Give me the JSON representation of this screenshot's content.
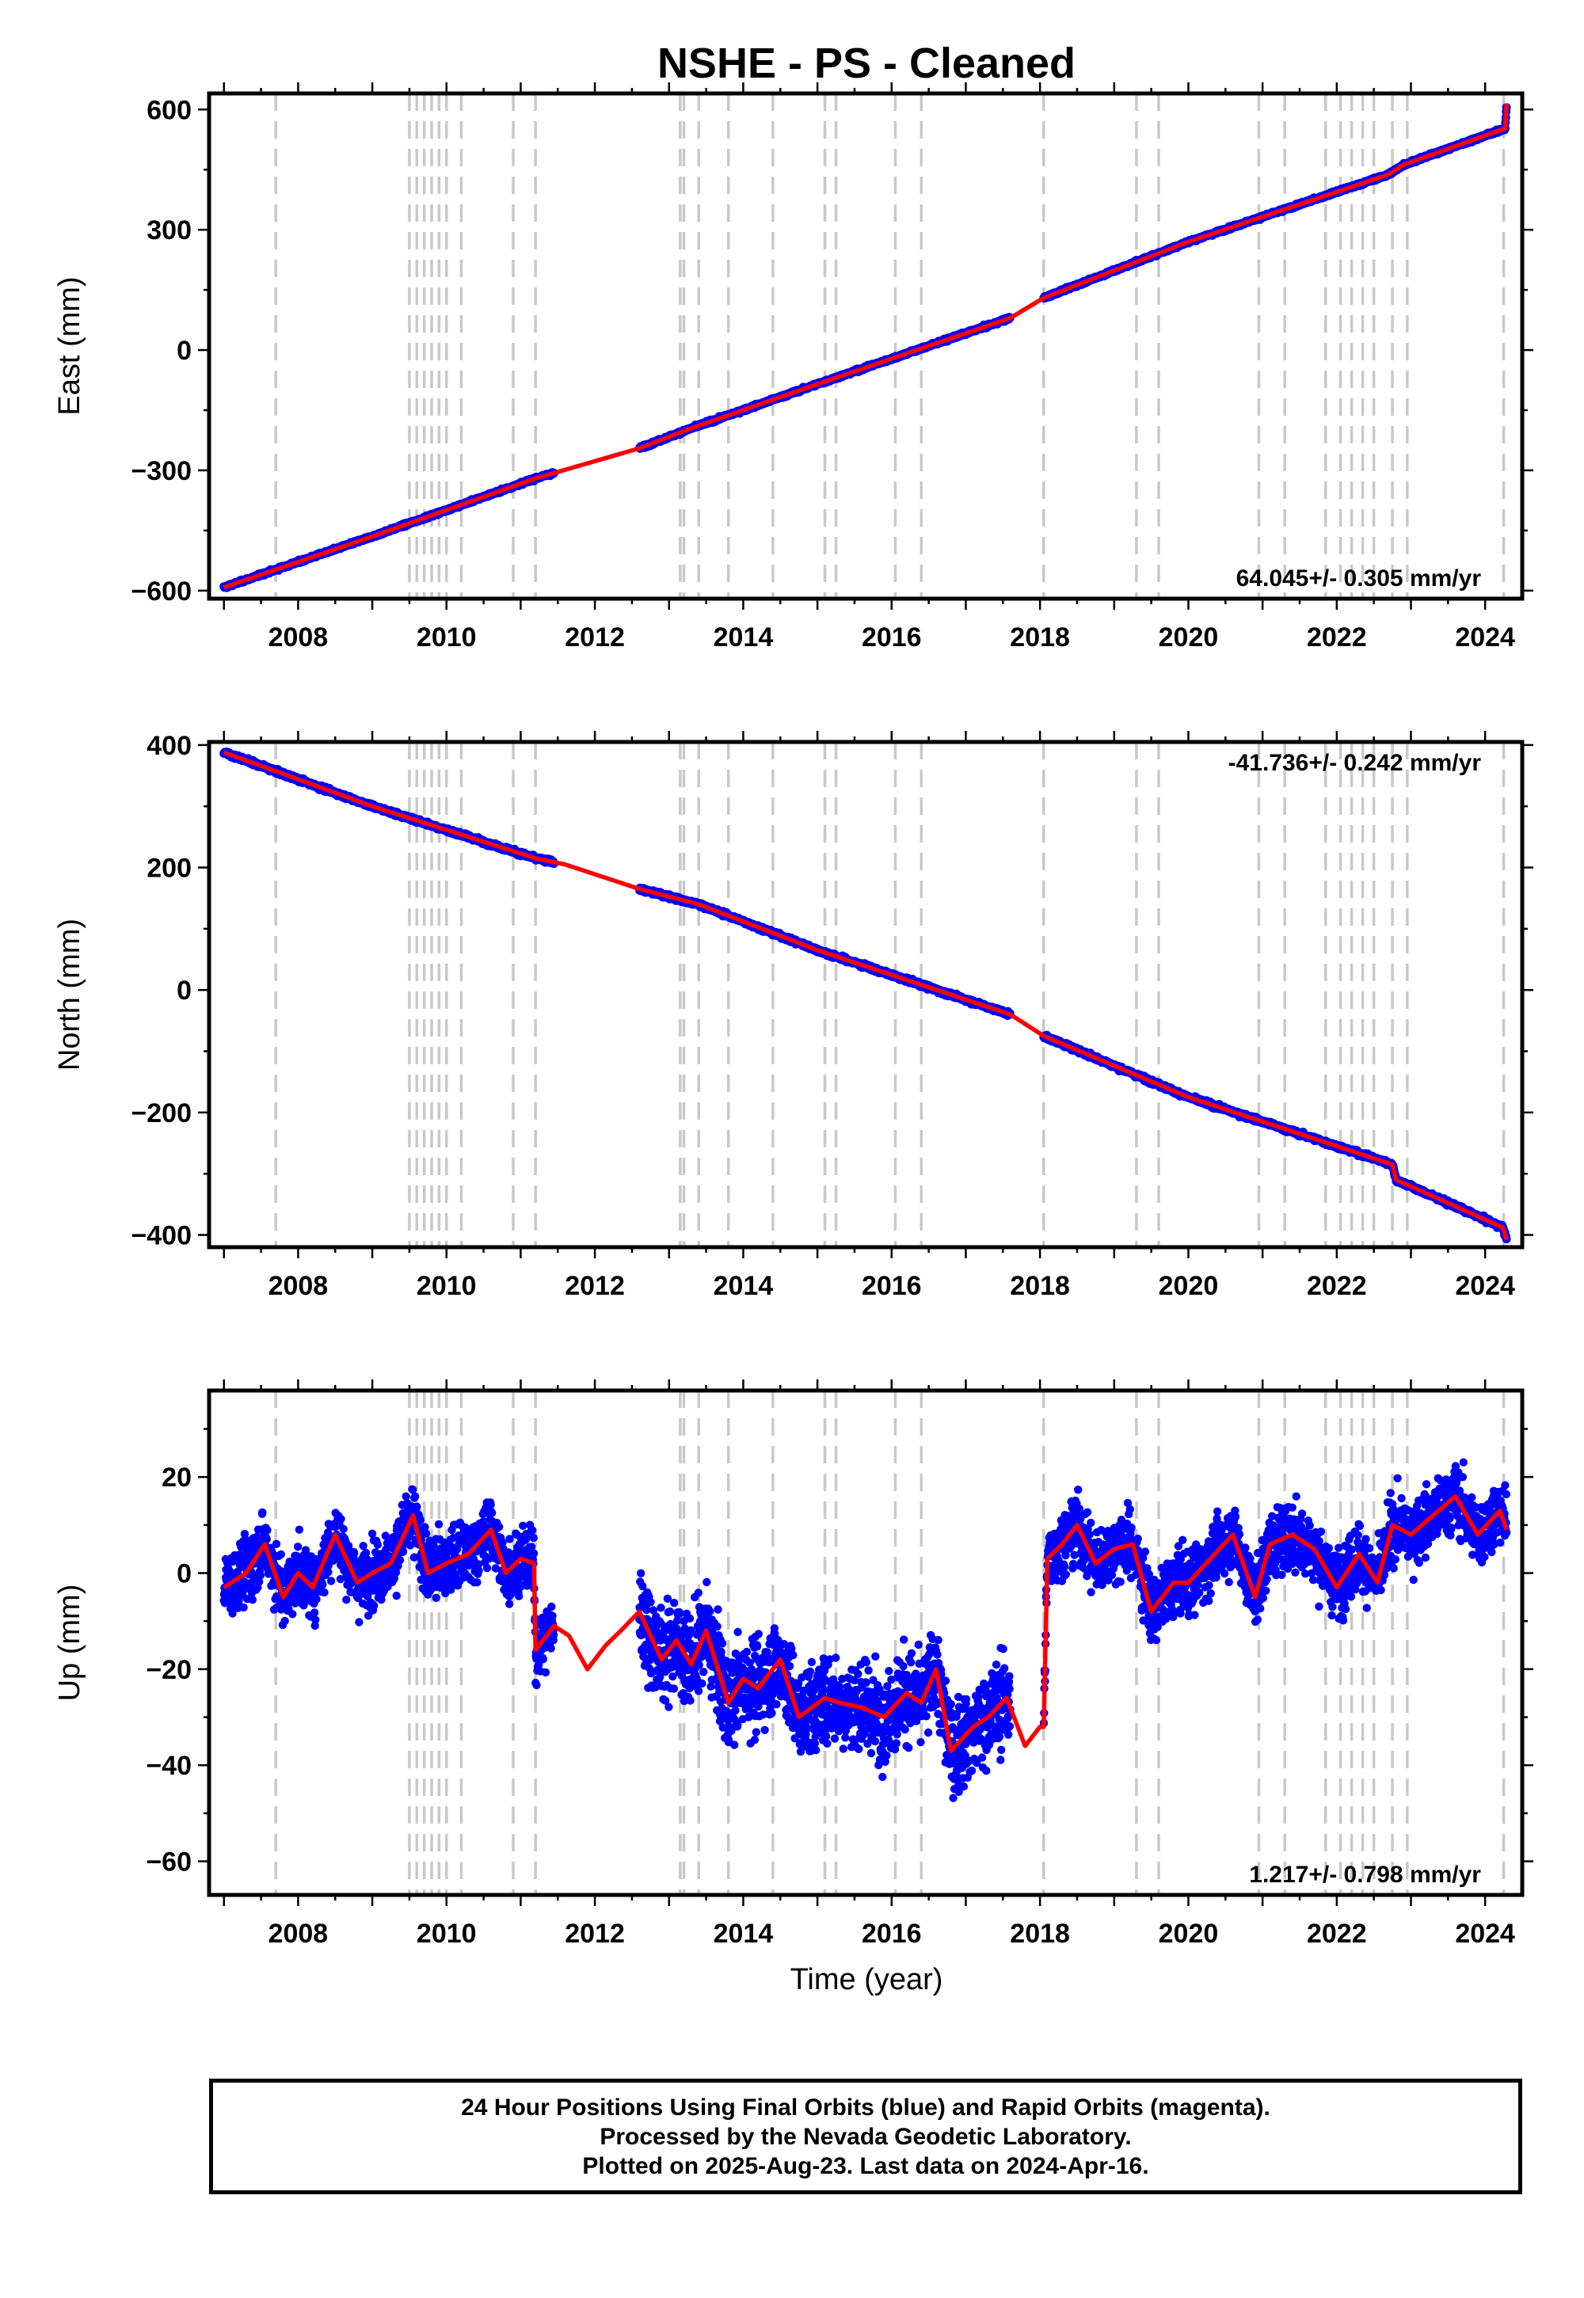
{
  "chart_data": {
    "type": "scatter",
    "title": "NSHE  - PS - Cleaned",
    "xlabel": "Time (year)",
    "xlim": [
      2006.8,
      2024.5
    ],
    "x_ticks": [
      2008,
      2010,
      2012,
      2014,
      2016,
      2018,
      2020,
      2022,
      2024
    ],
    "event_lines": [
      2007.7,
      2009.5,
      2009.6,
      2009.7,
      2009.8,
      2009.9,
      2010.0,
      2010.2,
      2010.9,
      2011.2,
      2013.15,
      2013.2,
      2013.4,
      2013.8,
      2014.4,
      2015.1,
      2015.25,
      2016.05,
      2016.4,
      2018.05,
      2019.3,
      2019.6,
      2020.95,
      2021.3,
      2021.85,
      2022.05,
      2022.2,
      2022.35,
      2022.5,
      2022.75,
      2022.95,
      2024.25
    ],
    "data_gaps": [
      [
        2011.45,
        2012.6
      ],
      [
        2017.6,
        2018.05
      ]
    ],
    "panels": [
      {
        "component": "east",
        "ylabel": "East (mm)",
        "ylim": [
          -620,
          640
        ],
        "y_ticks": [
          -600,
          -300,
          0,
          300,
          600
        ],
        "rate_label": "64.045+/- 0.305 mm/yr",
        "rate_position": "bottom-right",
        "series": [
          {
            "name": "24 Hour Positions",
            "color": "#0000ff",
            "x_start": 2007.0,
            "x_end": 2024.29,
            "start_value": -593,
            "rate_mm_per_yr": 64.045,
            "scatter_mm": 3
          },
          {
            "name": "model",
            "color": "#ff0000",
            "x": [
              2007.0,
              2009.0,
              2011.2,
              2012.6,
              2013.3,
              2015.0,
              2017.6,
              2018.05,
              2020.0,
              2022.7,
              2022.9,
              2024.27,
              2024.29
            ],
            "values": [
              -592,
              -465,
              -320,
              -245,
              -195,
              -85,
              80,
              130,
              270,
              438,
              462,
              553,
              615
            ]
          }
        ]
      },
      {
        "component": "north",
        "ylabel": "North (mm)",
        "ylim": [
          -420,
          405
        ],
        "y_ticks": [
          -400,
          -200,
          0,
          200,
          400
        ],
        "rate_label": "-41.736+/- 0.242 mm/yr",
        "rate_position": "top-right",
        "series": [
          {
            "name": "24 Hour Positions",
            "color": "#0000ff",
            "x_start": 2007.0,
            "x_end": 2024.29,
            "start_value": 388,
            "rate_mm_per_yr": -41.736,
            "scatter_mm": 3
          },
          {
            "name": "model",
            "color": "#ff0000",
            "x": [
              2007.0,
              2009.0,
              2011.2,
              2011.6,
              2012.6,
              2013.4,
              2015.0,
              2017.6,
              2018.05,
              2020.0,
              2022.75,
              2022.8,
              2024.24,
              2024.29
            ],
            "values": [
              388,
              300,
              215,
              205,
              165,
              140,
              65,
              -40,
              -75,
              -175,
              -285,
              -310,
              -388,
              -408
            ]
          }
        ]
      },
      {
        "component": "up",
        "ylabel": "Up (mm)",
        "ylim": [
          -67,
          38
        ],
        "y_ticks": [
          -60,
          -40,
          -20,
          0,
          20
        ],
        "rate_label": "1.217+/- 0.798 mm/yr",
        "rate_position": "bottom-right",
        "series": [
          {
            "name": "24 Hour Positions",
            "color": "#0000ff",
            "x_start": 2007.0,
            "x_end": 2024.29,
            "scatter_mm": 5
          },
          {
            "name": "model",
            "color": "#ff0000",
            "x": [
              2007.0,
              2007.3,
              2007.55,
              2007.8,
              2008.0,
              2008.2,
              2008.5,
              2008.8,
              2009.0,
              2009.25,
              2009.55,
              2009.75,
              2010.0,
              2010.3,
              2010.6,
              2010.8,
              2011.0,
              2011.18,
              2011.2,
              2011.45,
              2011.65,
              2011.9,
              2012.15,
              2012.35,
              2012.6,
              2012.9,
              2013.1,
              2013.3,
              2013.5,
              2013.8,
              2014.0,
              2014.2,
              2014.5,
              2014.75,
              2015.1,
              2015.3,
              2015.6,
              2015.9,
              2016.2,
              2016.4,
              2016.6,
              2016.8,
              2017.1,
              2017.3,
              2017.55,
              2017.8,
              2018.0,
              2018.05,
              2018.1,
              2018.3,
              2018.5,
              2018.75,
              2019.0,
              2019.25,
              2019.5,
              2019.8,
              2020.0,
              2020.3,
              2020.6,
              2020.9,
              2021.1,
              2021.4,
              2021.7,
              2022.0,
              2022.3,
              2022.55,
              2022.75,
              2023.0,
              2023.3,
              2023.6,
              2023.9,
              2024.2,
              2024.29
            ],
            "values": [
              -3,
              0,
              6,
              -5,
              0,
              -3,
              8,
              -2,
              0,
              2,
              12,
              0,
              2,
              4,
              9,
              0,
              3,
              2,
              -16,
              -11,
              -13,
              -20,
              -15,
              -12,
              -8,
              -18,
              -14,
              -19,
              -12,
              -27,
              -22,
              -24,
              -18,
              -30,
              -26,
              -27,
              -28,
              -30,
              -25,
              -27,
              -20,
              -37,
              -32,
              -30,
              -26,
              -36,
              -32,
              -32,
              3,
              6,
              10,
              2,
              5,
              6,
              -8,
              -2,
              -2,
              3,
              8,
              -5,
              6,
              8,
              5,
              -3,
              4,
              -2,
              10,
              8,
              12,
              16,
              8,
              13,
              9
            ]
          }
        ]
      }
    ]
  },
  "footer": {
    "line1": "24 Hour Positions Using Final Orbits (blue) and Rapid Orbits (magenta).",
    "line2": "Processed by the Nevada Geodetic Laboratory.",
    "line3": "Plotted on 2025-Aug-23. Last data on 2024-Apr-16."
  }
}
